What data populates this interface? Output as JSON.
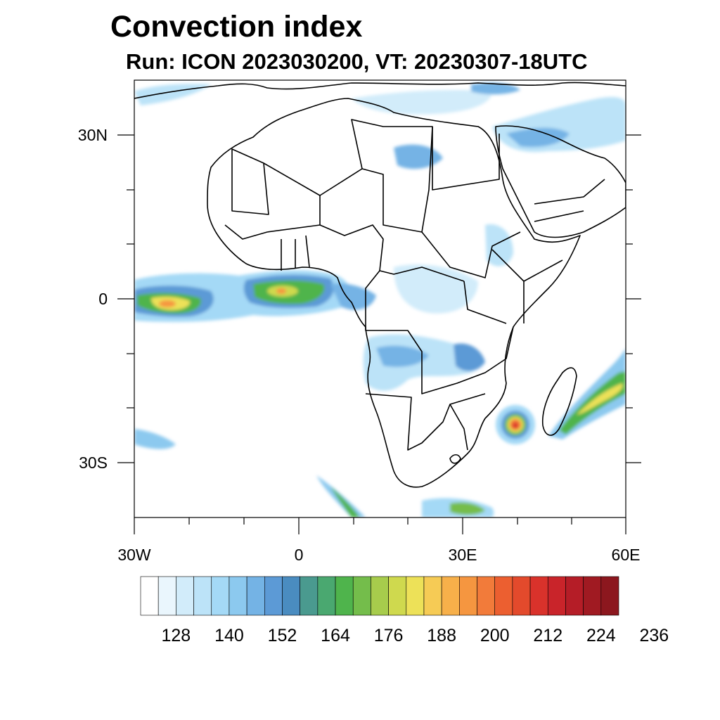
{
  "title": "Convection index",
  "subtitle": "Run: ICON 2023030200,  VT: 20230307-18UTC",
  "map": {
    "region": "Africa",
    "lon_range": [
      -30,
      60
    ],
    "lat_range": [
      -40,
      40
    ],
    "lat_tick_labels": [
      "30N",
      "0",
      "30S"
    ],
    "lon_tick_labels": [
      "30W",
      "0",
      "30E",
      "60E"
    ]
  },
  "colorbar": {
    "tick_labels": [
      "128",
      "140",
      "152",
      "164",
      "176",
      "188",
      "200",
      "212",
      "224",
      "236"
    ],
    "colors": [
      "#ffffff",
      "#eaf6fd",
      "#d2ecfa",
      "#bce3f8",
      "#a4d9f6",
      "#8cc9ef",
      "#74b3e5",
      "#5c9ad6",
      "#4a8cc0",
      "#4a9a8f",
      "#4aa870",
      "#4fb44c",
      "#74bd4b",
      "#a7cc4c",
      "#cfd94e",
      "#ede158",
      "#f6cb55",
      "#f7b04a",
      "#f59640",
      "#f27b3a",
      "#ec5f30",
      "#e34a2c",
      "#d9322b",
      "#c9242a",
      "#b51d27",
      "#a01a22",
      "#8c171e"
    ]
  }
}
